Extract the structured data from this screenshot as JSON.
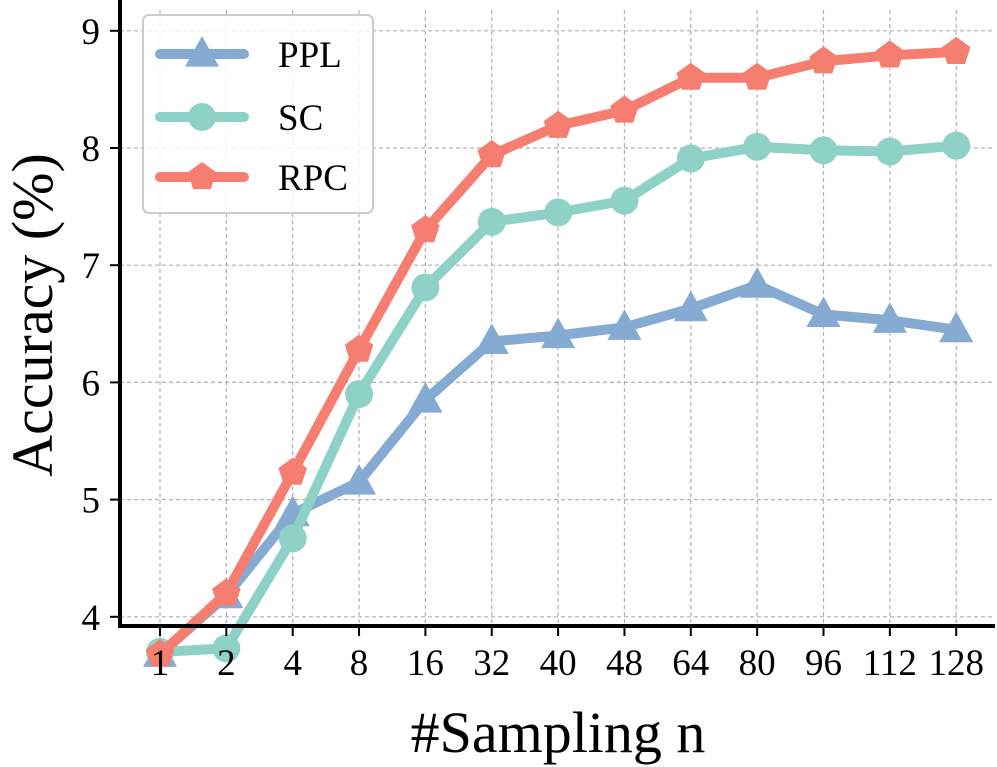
{
  "chart_data": {
    "type": "line",
    "title": "",
    "xlabel": "#Sampling n",
    "ylabel": "Accuracy (%)",
    "categories": [
      "1",
      "2",
      "4",
      "8",
      "16",
      "32",
      "40",
      "48",
      "64",
      "80",
      "96",
      "112",
      "128"
    ],
    "yticks": [
      "4",
      "5",
      "6",
      "7",
      "8",
      "9"
    ],
    "grid": true,
    "legend_position": "top-left",
    "series": [
      {
        "name": "PPL",
        "color": "#85ABD2",
        "marker": "triangle",
        "values": [
          3.68,
          4.18,
          4.88,
          5.15,
          5.85,
          6.35,
          6.4,
          6.47,
          6.63,
          6.83,
          6.58,
          6.53,
          6.45
        ]
      },
      {
        "name": "SC",
        "color": "#8ED1C6",
        "marker": "circle",
        "values": [
          3.7,
          3.73,
          4.67,
          5.9,
          6.81,
          7.37,
          7.45,
          7.55,
          7.91,
          8.01,
          7.98,
          7.97,
          8.02
        ]
      },
      {
        "name": "RPC",
        "color": "#F57E70",
        "marker": "pentagon",
        "values": [
          3.68,
          4.2,
          5.23,
          6.28,
          7.3,
          7.94,
          8.19,
          8.32,
          8.6,
          8.6,
          8.74,
          8.79,
          8.82
        ]
      }
    ]
  }
}
